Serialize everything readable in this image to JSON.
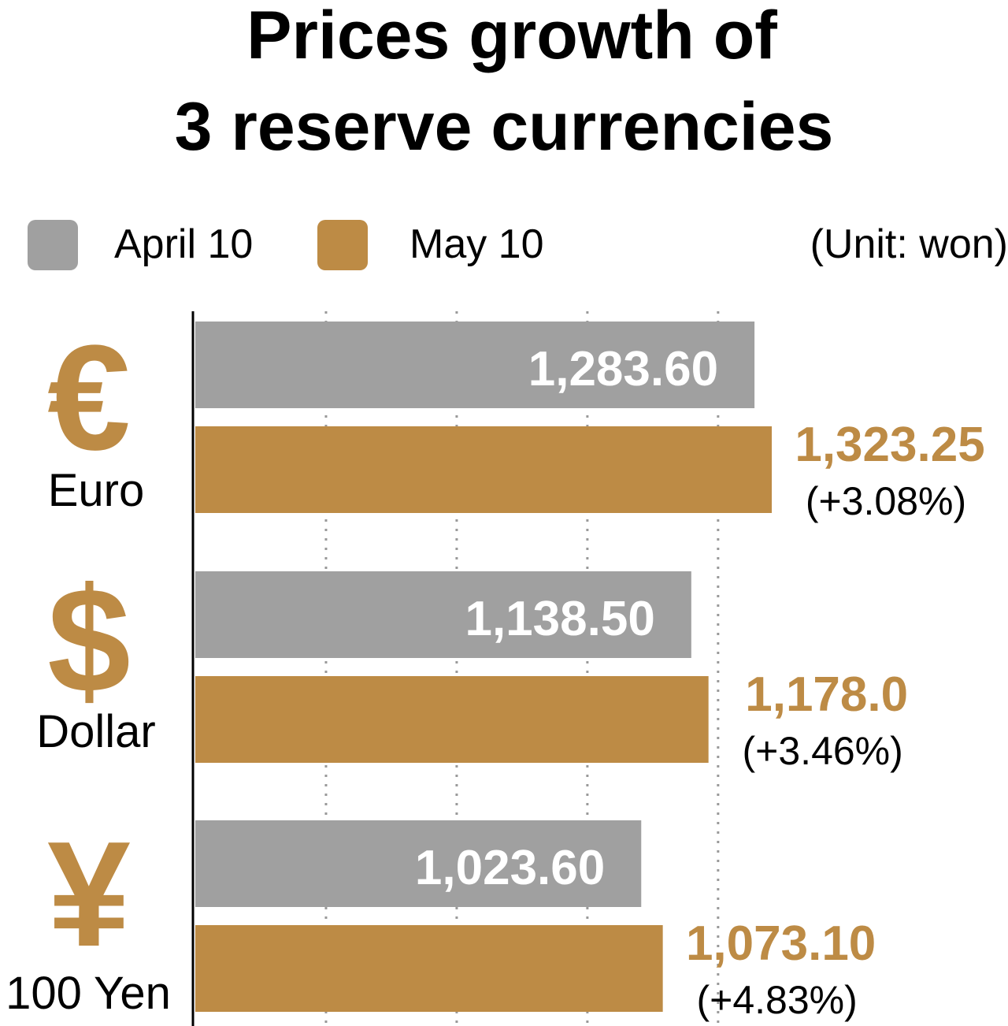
{
  "chart_data": {
    "type": "bar",
    "orientation": "horizontal",
    "title_line1": "Prices growth of",
    "title_line2": "3 reserve currencies",
    "unit": "(Unit: won)",
    "categories": [
      "Euro",
      "Dollar",
      "100 Yen"
    ],
    "category_symbols": [
      "€",
      "$",
      "¥"
    ],
    "series": [
      {
        "name": "April 10",
        "color": "#a0a0a0",
        "values": [
          1283.6,
          1138.5,
          1023.6
        ],
        "labels": [
          "1,283.60",
          "1,138.50",
          "1,023.60"
        ]
      },
      {
        "name": "May 10",
        "color": "#bd8b45",
        "values": [
          1323.25,
          1178.0,
          1073.1
        ],
        "labels": [
          "1,323.25",
          "1,178.0",
          "1,073.10"
        ],
        "changes": [
          "(+3.08%)",
          "(+3.46%)",
          "(+4.83%)"
        ]
      }
    ],
    "xlim": [
      0,
      1300
    ],
    "gridlines": [
      300,
      600,
      900,
      1200
    ],
    "legend_position": "top"
  }
}
